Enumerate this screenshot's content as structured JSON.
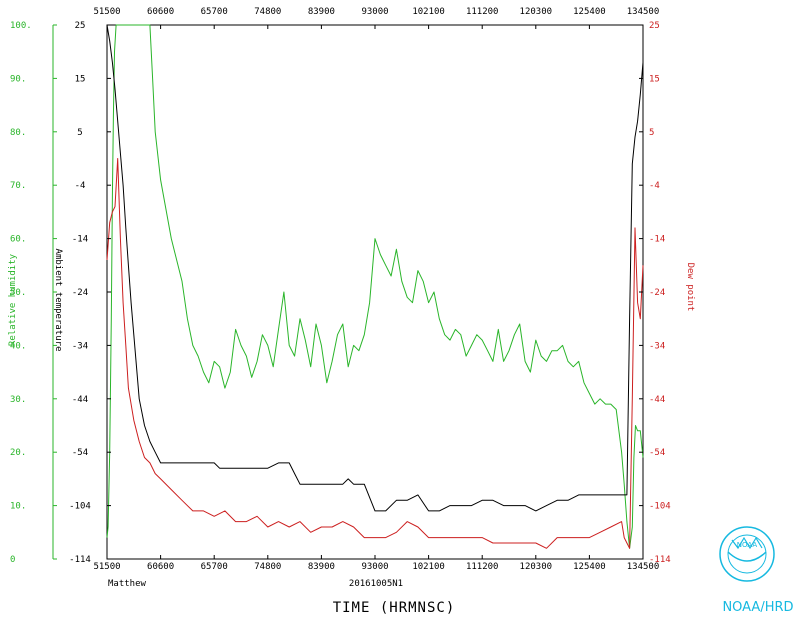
{
  "chart_data": {
    "type": "line",
    "title": "",
    "xlabel": "TIME (HRMNSC)",
    "storm_name": "Matthew",
    "flight_id": "20161005N1",
    "agency": "NOAA/HRD",
    "logo_text": "NOAA",
    "x_ticks": [
      "51500",
      "60600",
      "65700",
      "74800",
      "83900",
      "93000",
      "102100",
      "111200",
      "120300",
      "125400",
      "134500"
    ],
    "xlim": [
      0,
      10
    ],
    "rh_axis": {
      "label": "Relative humidity",
      "ticks": [
        "0",
        "10.",
        "20.",
        "30.",
        "40.",
        "50.",
        "60.",
        "70.",
        "80.",
        "90.",
        "100."
      ],
      "ylim": [
        0,
        100
      ],
      "color": "#2ab52a"
    },
    "temp_axis": {
      "label": "Ambient temperature",
      "ticks": [
        "-114",
        "-104",
        "-54",
        "-44",
        "-34",
        "-24",
        "-14",
        "-4",
        "5",
        "15",
        "25"
      ],
      "color": "#000000"
    },
    "dewpoint_axis": {
      "label": "Dew point",
      "ticks": [
        "-114",
        "-104",
        "-54",
        "-44",
        "-34",
        "-24",
        "-14",
        "-4",
        "5",
        "15",
        "25"
      ],
      "color": "#cc1f1f"
    },
    "grid": false,
    "series": [
      {
        "key": "rh",
        "color": "#2ab52a",
        "x": [
          0,
          0.02,
          0.05,
          0.08,
          0.1,
          0.12,
          0.14,
          0.17,
          0.2,
          0.25,
          0.3,
          0.4,
          0.55,
          0.7,
          0.8,
          0.85,
          0.9,
          1.0,
          1.2,
          1.4,
          1.5,
          1.6,
          1.7,
          1.8,
          1.9,
          2.0,
          2.1,
          2.2,
          2.3,
          2.4,
          2.5,
          2.6,
          2.7,
          2.8,
          2.9,
          3.0,
          3.1,
          3.2,
          3.3,
          3.4,
          3.5,
          3.6,
          3.7,
          3.8,
          3.9,
          4.0,
          4.1,
          4.2,
          4.3,
          4.4,
          4.5,
          4.6,
          4.7,
          4.8,
          4.9,
          5.0,
          5.1,
          5.2,
          5.3,
          5.4,
          5.5,
          5.6,
          5.7,
          5.8,
          5.9,
          6.0,
          6.1,
          6.2,
          6.3,
          6.4,
          6.5,
          6.6,
          6.7,
          6.8,
          6.9,
          7.0,
          7.1,
          7.2,
          7.3,
          7.4,
          7.5,
          7.6,
          7.7,
          7.8,
          7.9,
          8.0,
          8.1,
          8.2,
          8.3,
          8.4,
          8.5,
          8.6,
          8.7,
          8.8,
          8.9,
          9.0,
          9.1,
          9.2,
          9.3,
          9.4,
          9.5,
          9.6,
          9.65,
          9.7,
          9.75,
          9.8,
          9.83,
          9.86,
          9.9,
          9.95,
          10.0
        ],
        "values": [
          4,
          6,
          20,
          45,
          68,
          83,
          95,
          100,
          100,
          100,
          100,
          100,
          100,
          100,
          100,
          90,
          80,
          71,
          60,
          52,
          45,
          40,
          38,
          35,
          33,
          37,
          36,
          32,
          35,
          43,
          40,
          38,
          34,
          37,
          42,
          40,
          36,
          43,
          50,
          40,
          38,
          45,
          41,
          36,
          44,
          40,
          33,
          37,
          42,
          44,
          36,
          40,
          39,
          42,
          48,
          60,
          57,
          55,
          53,
          58,
          52,
          49,
          48,
          54,
          52,
          48,
          50,
          45,
          42,
          41,
          43,
          42,
          38,
          40,
          42,
          41,
          39,
          37,
          43,
          37,
          39,
          42,
          44,
          37,
          35,
          41,
          38,
          37,
          39,
          39,
          40,
          37,
          36,
          37,
          33,
          31,
          29,
          30,
          29,
          29,
          28,
          20,
          14,
          7,
          2,
          6,
          19,
          25,
          24,
          24,
          19
        ]
      },
      {
        "key": "temp",
        "color": "#000000",
        "x": [
          0,
          0.05,
          0.1,
          0.15,
          0.2,
          0.25,
          0.3,
          0.35,
          0.4,
          0.45,
          0.5,
          0.55,
          0.6,
          0.7,
          0.8,
          0.9,
          1.0,
          1.2,
          1.5,
          1.8,
          2.0,
          2.1,
          2.2,
          2.4,
          2.6,
          2.8,
          3.0,
          3.2,
          3.4,
          3.5,
          3.6,
          3.8,
          4.0,
          4.2,
          4.4,
          4.5,
          4.6,
          4.8,
          5.0,
          5.2,
          5.4,
          5.6,
          5.8,
          6.0,
          6.2,
          6.4,
          6.6,
          6.8,
          7.0,
          7.2,
          7.4,
          7.6,
          7.8,
          8.0,
          8.2,
          8.4,
          8.6,
          8.8,
          9.0,
          9.2,
          9.4,
          9.6,
          9.7,
          9.75,
          9.8,
          9.85,
          9.9,
          9.95,
          10.0
        ],
        "values": [
          100,
          97,
          93,
          88,
          82,
          76,
          70,
          62,
          55,
          48,
          42,
          36,
          30,
          25,
          22,
          20,
          18,
          18,
          18,
          18,
          18,
          17,
          17,
          17,
          17,
          17,
          17,
          18,
          18,
          16,
          14,
          14,
          14,
          14,
          14,
          15,
          14,
          14,
          9,
          9,
          11,
          11,
          12,
          9,
          9,
          10,
          10,
          10,
          11,
          11,
          10,
          10,
          10,
          9,
          10,
          11,
          11,
          12,
          12,
          12,
          12,
          12,
          12,
          45,
          74,
          79,
          82,
          87,
          93
        ]
      },
      {
        "key": "dewpoint",
        "color": "#cc1f1f",
        "x": [
          0,
          0.05,
          0.1,
          0.15,
          0.2,
          0.25,
          0.3,
          0.35,
          0.4,
          0.5,
          0.6,
          0.7,
          0.8,
          0.9,
          1.0,
          1.2,
          1.4,
          1.6,
          1.8,
          2.0,
          2.2,
          2.4,
          2.6,
          2.8,
          3.0,
          3.2,
          3.4,
          3.6,
          3.8,
          4.0,
          4.2,
          4.4,
          4.6,
          4.8,
          5.0,
          5.2,
          5.4,
          5.6,
          5.8,
          6.0,
          6.2,
          6.4,
          6.6,
          6.8,
          7.0,
          7.2,
          7.4,
          7.6,
          7.8,
          8.0,
          8.2,
          8.4,
          8.6,
          8.8,
          9.0,
          9.2,
          9.4,
          9.6,
          9.65,
          9.7,
          9.75,
          9.8,
          9.85,
          9.9,
          9.95,
          10.0
        ],
        "values": [
          56,
          63,
          65,
          66,
          75,
          60,
          48,
          40,
          32,
          26,
          22,
          19,
          18,
          16,
          15,
          13,
          11,
          9,
          9,
          8,
          9,
          7,
          7,
          8,
          6,
          7,
          6,
          7,
          5,
          6,
          6,
          7,
          6,
          4,
          4,
          4,
          5,
          7,
          6,
          4,
          4,
          4,
          4,
          4,
          4,
          3,
          3,
          3,
          3,
          3,
          2,
          4,
          4,
          4,
          4,
          5,
          6,
          7,
          4,
          3,
          2,
          30,
          62,
          48,
          45,
          55
        ]
      }
    ]
  }
}
